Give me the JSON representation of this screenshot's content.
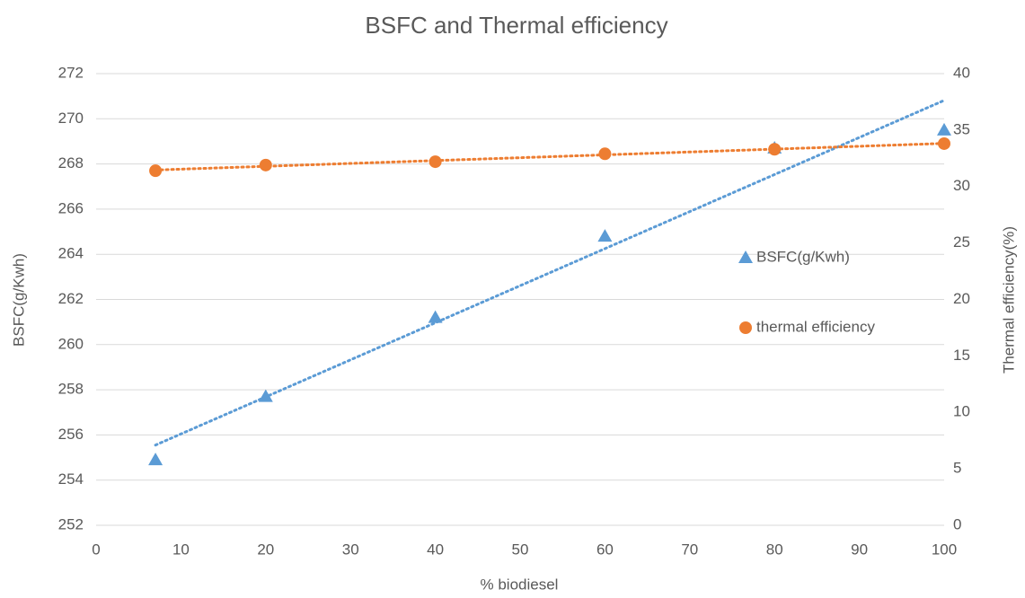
{
  "chart_data": {
    "type": "scatter",
    "title": "BSFC and Thermal efficiency",
    "x_label": "% biodiesel",
    "y_label": "BSFC(g/Kwh)",
    "y2_label": "Thermal efficiency(%)",
    "x": [
      7,
      20,
      40,
      60,
      80,
      100
    ],
    "series": [
      {
        "name": "BSFC(g/Kwh)",
        "color": "#5b9bd5",
        "marker": "triangle",
        "values": [
          254.9,
          257.7,
          261.2,
          264.8,
          268.7,
          269.5
        ]
      },
      {
        "name": "thermal efficiency",
        "color": "#ed7d31",
        "marker": "circle",
        "axis": "y2",
        "values": [
          31.4,
          31.9,
          32.2,
          32.9,
          33.3,
          33.8
        ]
      }
    ],
    "trendline": "linear",
    "xlim": [
      0,
      100
    ],
    "xticks": [
      0,
      10,
      20,
      30,
      40,
      50,
      60,
      70,
      80,
      90,
      100
    ],
    "ylim": [
      252,
      272
    ],
    "yticks": [
      252,
      254,
      256,
      258,
      260,
      262,
      264,
      266,
      268,
      270,
      272
    ],
    "y2lim": [
      0,
      40
    ],
    "y2ticks": [
      0,
      5,
      10,
      15,
      20,
      25,
      30,
      35,
      40
    ],
    "grid": true,
    "legend": "right"
  }
}
